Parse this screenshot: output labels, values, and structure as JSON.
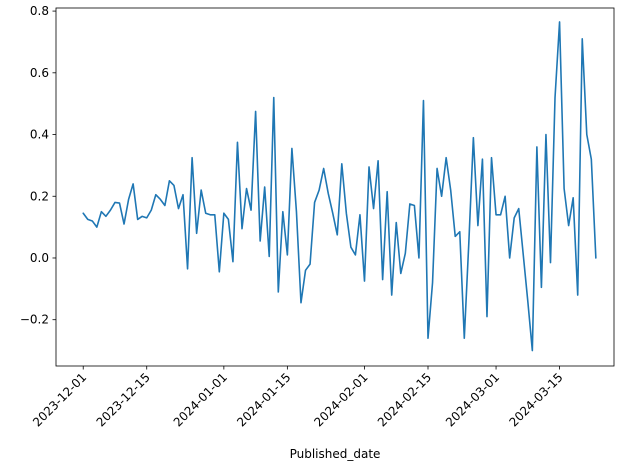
{
  "chart_data": {
    "type": "line",
    "title": "",
    "xlabel": "Published_date",
    "ylabel": "",
    "color": "#1f77b4",
    "x_start": "2023-12-01",
    "x_step_days": 1,
    "xlim": [
      "2023-11-25",
      "2024-03-27"
    ],
    "ylim": [
      -0.35,
      0.81
    ],
    "x_ticks": [
      "2023-12-01",
      "2023-12-15",
      "2024-01-01",
      "2024-01-15",
      "2024-02-01",
      "2024-02-15",
      "2024-03-01",
      "2024-03-15"
    ],
    "y_ticks": [
      -0.2,
      0.0,
      0.2,
      0.4,
      0.6,
      0.8
    ],
    "y_tick_labels": [
      "−0.2",
      "0.0",
      "0.2",
      "0.4",
      "0.6",
      "0.8"
    ],
    "grid": false,
    "legend": "none",
    "values": [
      0.145,
      0.125,
      0.12,
      0.1,
      0.15,
      0.135,
      0.155,
      0.18,
      0.178,
      0.11,
      0.19,
      0.24,
      0.125,
      0.135,
      0.13,
      0.155,
      0.205,
      0.19,
      0.17,
      0.25,
      0.235,
      0.16,
      0.205,
      -0.035,
      0.325,
      0.08,
      0.22,
      0.145,
      0.14,
      0.14,
      -0.045,
      0.145,
      0.125,
      -0.012,
      0.375,
      0.095,
      0.225,
      0.155,
      0.475,
      0.055,
      0.23,
      0.005,
      0.52,
      -0.11,
      0.15,
      0.01,
      0.355,
      0.15,
      -0.145,
      -0.04,
      -0.02,
      0.18,
      0.22,
      0.29,
      0.21,
      0.145,
      0.075,
      0.305,
      0.145,
      0.035,
      0.01,
      0.14,
      -0.075,
      0.295,
      0.16,
      0.315,
      -0.07,
      0.215,
      -0.12,
      0.115,
      -0.05,
      0.015,
      0.175,
      0.17,
      0.0,
      0.51,
      -0.26,
      -0.08,
      0.29,
      0.2,
      0.325,
      0.22,
      0.07,
      0.085,
      -0.26,
      0.05,
      0.39,
      0.105,
      0.32,
      -0.19,
      0.325,
      0.14,
      0.14,
      0.2,
      0.0,
      0.13,
      0.16,
      0.01,
      -0.14,
      -0.3,
      0.36,
      -0.095,
      0.4,
      -0.015,
      0.52,
      0.765,
      0.225,
      0.105,
      0.195,
      -0.12,
      0.71,
      0.4,
      0.32,
      0.0
    ]
  }
}
